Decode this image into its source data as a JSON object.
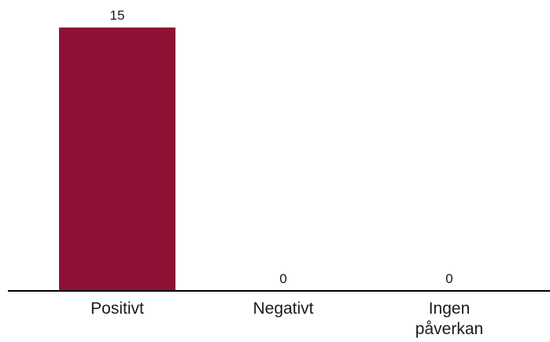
{
  "chart_data": {
    "type": "bar",
    "categories": [
      [
        "Positivt"
      ],
      [
        "Negativt"
      ],
      [
        "Ingen",
        "påverkan"
      ]
    ],
    "values": [
      15,
      0,
      0
    ],
    "data_labels": [
      "15",
      "0",
      "0"
    ],
    "title": "",
    "xlabel": "",
    "ylabel": "",
    "ylim": [
      0,
      15
    ],
    "grid": false,
    "legend": "none",
    "bar_color": "#8e1136",
    "axis_color": "#000000"
  }
}
